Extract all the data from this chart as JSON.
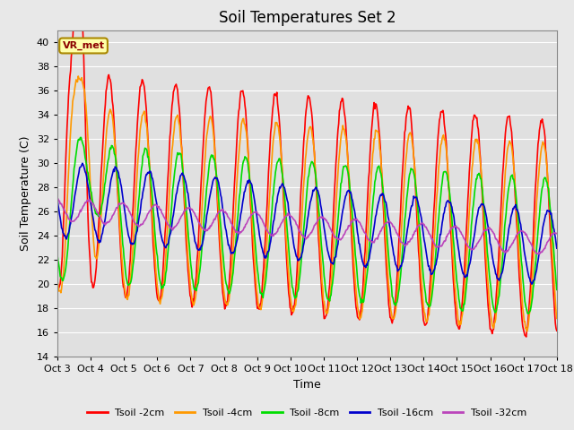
{
  "title": "Soil Temperatures Set 2",
  "xlabel": "Time",
  "ylabel": "Soil Temperature (C)",
  "ylim": [
    14,
    41
  ],
  "yticks": [
    14,
    16,
    18,
    20,
    22,
    24,
    26,
    28,
    30,
    32,
    34,
    36,
    38,
    40
  ],
  "x_labels": [
    "Oct 3",
    "Oct 4",
    "Oct 5",
    "Oct 6",
    "Oct 7",
    "Oct 8",
    "Oct 9",
    "Oct 10",
    "Oct 11",
    "Oct 12",
    "Oct 13",
    "Oct 14",
    "Oct 15",
    "Oct 16",
    "Oct 17",
    "Oct 18"
  ],
  "annotation_text": "VR_met",
  "colors": {
    "Tsoil -2cm": "#ff0000",
    "Tsoil -4cm": "#ff9900",
    "Tsoil -8cm": "#00dd00",
    "Tsoil -16cm": "#0000cc",
    "Tsoil -32cm": "#bb44bb"
  },
  "fig_bg_color": "#e8e8e8",
  "plot_bg_color": "#e0e0e0",
  "grid_color": "#ffffff",
  "line_width": 1.2,
  "title_fontsize": 12,
  "label_fontsize": 9,
  "tick_fontsize": 8
}
